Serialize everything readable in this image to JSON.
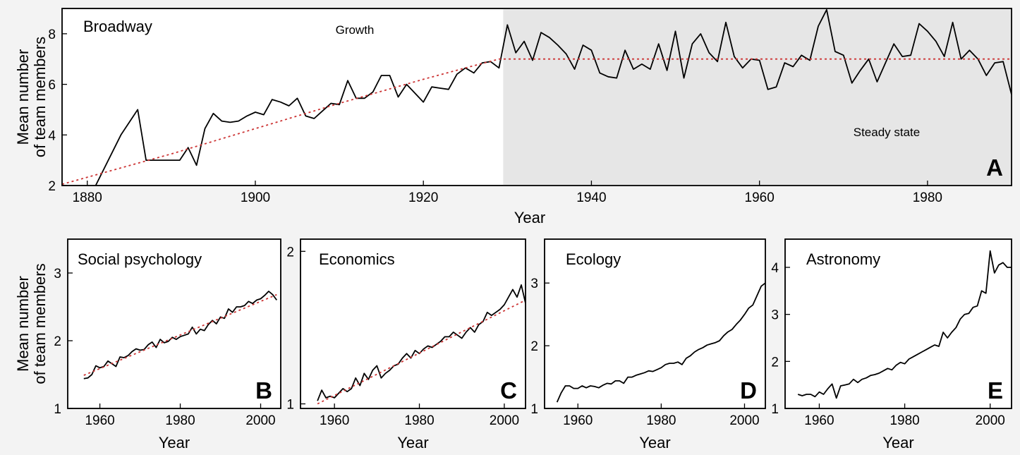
{
  "colors": {
    "background": "#f3f3f3",
    "plot_background": "#ffffff",
    "steady_state_shade": "#e6e6e6",
    "data_line": "#000000",
    "fit_line": "#cc3333"
  },
  "chart_data": [
    {
      "panel": "A",
      "type": "line",
      "title": "Broadway",
      "xlabel": "Year",
      "ylabel": [
        "Mean number",
        "of team members"
      ],
      "xlim": [
        1877,
        1990
      ],
      "ylim": [
        2,
        9
      ],
      "xticks": [
        1880,
        1900,
        1920,
        1940,
        1960,
        1980
      ],
      "yticks": [
        2,
        4,
        6,
        8
      ],
      "annotations": [
        "Growth",
        "Steady state"
      ],
      "shaded_region": [
        1929.5,
        1990
      ],
      "series": [
        {
          "style": "solid",
          "x": [
            1881,
            1884,
            1886,
            1887,
            1888,
            1889,
            1890,
            1891,
            1892,
            1893,
            1894,
            1895,
            1896,
            1897,
            1898,
            1899,
            1900,
            1901,
            1902,
            1903,
            1904,
            1905,
            1906,
            1907,
            1908,
            1909,
            1910,
            1911,
            1912,
            1913,
            1914,
            1915,
            1916,
            1917,
            1918,
            1919,
            1920,
            1921,
            1922,
            1923,
            1924,
            1925,
            1926,
            1927,
            1928,
            1929,
            1930,
            1931,
            1932,
            1933,
            1934,
            1935,
            1936,
            1937,
            1938,
            1939,
            1940,
            1941,
            1942,
            1943,
            1944,
            1945,
            1946,
            1947,
            1948,
            1949,
            1950,
            1951,
            1952,
            1953,
            1954,
            1955,
            1956,
            1957,
            1958,
            1959,
            1960,
            1961,
            1962,
            1963,
            1964,
            1965,
            1966,
            1967,
            1968,
            1969,
            1970,
            1971,
            1972,
            1973,
            1974,
            1975,
            1976,
            1977,
            1978,
            1979,
            1980,
            1981,
            1982,
            1983,
            1984,
            1985,
            1986,
            1987,
            1988,
            1989,
            1990
          ],
          "y": [
            2.0,
            4.0,
            5.0,
            3.0,
            3.0,
            3.0,
            3.0,
            3.0,
            3.5,
            2.8,
            4.25,
            4.85,
            4.55,
            4.5,
            4.55,
            4.75,
            4.9,
            4.8,
            5.4,
            5.3,
            5.15,
            5.45,
            4.75,
            4.65,
            4.95,
            5.25,
            5.2,
            6.15,
            5.45,
            5.45,
            5.7,
            6.35,
            6.35,
            5.5,
            6.0,
            5.65,
            5.3,
            5.9,
            5.85,
            5.8,
            6.4,
            6.65,
            6.45,
            6.85,
            6.9,
            6.65,
            8.35,
            7.25,
            7.7,
            6.95,
            8.05,
            7.85,
            7.55,
            7.2,
            6.6,
            7.55,
            7.35,
            6.45,
            6.3,
            6.25,
            7.35,
            6.6,
            6.8,
            6.6,
            7.6,
            6.55,
            8.1,
            6.25,
            7.6,
            8.0,
            7.25,
            6.9,
            8.45,
            7.1,
            6.65,
            7.0,
            6.95,
            5.8,
            5.9,
            6.85,
            6.7,
            7.15,
            6.95,
            8.3,
            8.95,
            7.3,
            7.15,
            6.05,
            6.55,
            7.0,
            6.1,
            6.85,
            7.6,
            7.1,
            7.15,
            8.4,
            8.1,
            7.7,
            7.1,
            8.45,
            7.0,
            7.35,
            7.0,
            6.35,
            6.85,
            6.9,
            5.6
          ]
        },
        {
          "style": "dotted-fit",
          "x": [
            1877,
            1890,
            1900,
            1910,
            1920,
            1925,
            1929,
            1930,
            1990
          ],
          "y": [
            2.05,
            3.25,
            4.25,
            5.25,
            6.2,
            6.65,
            7.0,
            7.0,
            7.0
          ]
        }
      ],
      "panel_letter": "A"
    },
    {
      "panel": "B",
      "type": "line",
      "title": "Social psychology",
      "xlabel": "Year",
      "ylabel": [
        "Mean number",
        "of team members"
      ],
      "xlim": [
        1952,
        2005
      ],
      "ylim": [
        1,
        3.5
      ],
      "xticks": [
        1960,
        1980,
        2000
      ],
      "yticks": [
        1,
        2,
        3
      ],
      "series": [
        {
          "style": "solid",
          "x": [
            1956,
            1957,
            1958,
            1959,
            1960,
            1961,
            1962,
            1963,
            1964,
            1965,
            1966,
            1967,
            1968,
            1969,
            1970,
            1971,
            1972,
            1973,
            1974,
            1975,
            1976,
            1977,
            1978,
            1979,
            1980,
            1981,
            1982,
            1983,
            1984,
            1985,
            1986,
            1987,
            1988,
            1989,
            1990,
            1991,
            1992,
            1993,
            1994,
            1995,
            1996,
            1997,
            1998,
            1999,
            2000,
            2001,
            2002,
            2003,
            2004
          ],
          "y": [
            1.44,
            1.45,
            1.5,
            1.63,
            1.6,
            1.62,
            1.7,
            1.66,
            1.62,
            1.76,
            1.75,
            1.78,
            1.84,
            1.88,
            1.86,
            1.87,
            1.94,
            1.98,
            1.9,
            2.02,
            1.97,
            1.99,
            2.05,
            2.02,
            2.06,
            2.08,
            2.1,
            2.2,
            2.1,
            2.17,
            2.15,
            2.24,
            2.3,
            2.25,
            2.35,
            2.33,
            2.47,
            2.42,
            2.5,
            2.5,
            2.52,
            2.58,
            2.55,
            2.6,
            2.62,
            2.67,
            2.73,
            2.68,
            2.6
          ]
        },
        {
          "style": "dotted-fit",
          "x": [
            1956,
            2004
          ],
          "y": [
            1.49,
            2.68
          ]
        }
      ],
      "panel_letter": "B"
    },
    {
      "panel": "C",
      "type": "line",
      "title": "Economics",
      "xlabel": "Year",
      "ylabel": [],
      "xlim": [
        1952,
        2005
      ],
      "ylim": [
        0.97,
        2.08
      ],
      "xticks": [
        1960,
        1980,
        2000
      ],
      "yticks": [
        1,
        2
      ],
      "series": [
        {
          "style": "solid",
          "x": [
            1956,
            1957,
            1958,
            1959,
            1960,
            1961,
            1962,
            1963,
            1964,
            1965,
            1966,
            1967,
            1968,
            1969,
            1970,
            1971,
            1972,
            1973,
            1974,
            1975,
            1976,
            1977,
            1978,
            1979,
            1980,
            1981,
            1982,
            1983,
            1984,
            1985,
            1986,
            1987,
            1988,
            1989,
            1990,
            1991,
            1992,
            1993,
            1994,
            1995,
            1996,
            1997,
            1998,
            1999,
            2000,
            2001,
            2002,
            2003,
            2004,
            2005
          ],
          "y": [
            1.02,
            1.09,
            1.04,
            1.05,
            1.04,
            1.07,
            1.1,
            1.08,
            1.1,
            1.17,
            1.12,
            1.2,
            1.16,
            1.22,
            1.25,
            1.17,
            1.2,
            1.22,
            1.25,
            1.26,
            1.3,
            1.33,
            1.3,
            1.35,
            1.33,
            1.36,
            1.38,
            1.37,
            1.39,
            1.41,
            1.44,
            1.44,
            1.47,
            1.45,
            1.43,
            1.47,
            1.5,
            1.47,
            1.52,
            1.54,
            1.6,
            1.58,
            1.6,
            1.62,
            1.65,
            1.7,
            1.75,
            1.7,
            1.78,
            1.66
          ]
        },
        {
          "style": "dotted-fit",
          "x": [
            1956,
            2005
          ],
          "y": [
            1.0,
            1.68
          ]
        }
      ],
      "panel_letter": "C"
    },
    {
      "panel": "D",
      "type": "line",
      "title": "Ecology",
      "xlabel": "Year",
      "ylabel": [],
      "xlim": [
        1952,
        2005
      ],
      "ylim": [
        1,
        3.7
      ],
      "xticks": [
        1960,
        1980,
        2000
      ],
      "yticks": [
        1,
        2,
        3
      ],
      "series": [
        {
          "style": "solid",
          "x": [
            1955,
            1956,
            1957,
            1958,
            1959,
            1960,
            1961,
            1962,
            1963,
            1964,
            1965,
            1966,
            1967,
            1968,
            1969,
            1970,
            1971,
            1972,
            1973,
            1974,
            1975,
            1976,
            1977,
            1978,
            1979,
            1980,
            1981,
            1982,
            1983,
            1984,
            1985,
            1986,
            1987,
            1988,
            1989,
            1990,
            1991,
            1992,
            1993,
            1994,
            1995,
            1996,
            1997,
            1998,
            1999,
            2000,
            2001,
            2002,
            2003,
            2004,
            2005
          ],
          "y": [
            1.1,
            1.25,
            1.36,
            1.36,
            1.32,
            1.32,
            1.36,
            1.33,
            1.36,
            1.35,
            1.33,
            1.37,
            1.4,
            1.39,
            1.44,
            1.44,
            1.4,
            1.5,
            1.5,
            1.53,
            1.55,
            1.57,
            1.6,
            1.59,
            1.62,
            1.65,
            1.7,
            1.72,
            1.72,
            1.74,
            1.7,
            1.8,
            1.84,
            1.9,
            1.94,
            1.97,
            2.01,
            2.03,
            2.05,
            2.08,
            2.16,
            2.22,
            2.26,
            2.34,
            2.41,
            2.5,
            2.6,
            2.65,
            2.8,
            2.95,
            3.0
          ]
        }
      ],
      "panel_letter": "D"
    },
    {
      "panel": "E",
      "type": "line",
      "title": "Astronomy",
      "xlabel": "Year",
      "ylabel": [],
      "xlim": [
        1952,
        2005
      ],
      "ylim": [
        1,
        4.6
      ],
      "xticks": [
        1960,
        1980,
        2000
      ],
      "yticks": [
        1,
        2,
        3,
        4
      ],
      "series": [
        {
          "style": "solid",
          "x": [
            1955,
            1956,
            1957,
            1958,
            1959,
            1960,
            1961,
            1962,
            1963,
            1964,
            1965,
            1966,
            1967,
            1968,
            1969,
            1970,
            1971,
            1972,
            1973,
            1974,
            1975,
            1976,
            1977,
            1978,
            1979,
            1980,
            1981,
            1982,
            1983,
            1984,
            1985,
            1986,
            1987,
            1988,
            1989,
            1990,
            1991,
            1992,
            1993,
            1994,
            1995,
            1996,
            1997,
            1998,
            1999,
            2000,
            2001,
            2002,
            2003,
            2004,
            2005
          ],
          "y": [
            1.3,
            1.27,
            1.3,
            1.3,
            1.25,
            1.35,
            1.3,
            1.42,
            1.52,
            1.22,
            1.48,
            1.5,
            1.52,
            1.62,
            1.55,
            1.62,
            1.65,
            1.7,
            1.72,
            1.75,
            1.8,
            1.85,
            1.82,
            1.92,
            1.98,
            1.95,
            2.05,
            2.1,
            2.15,
            2.2,
            2.25,
            2.3,
            2.35,
            2.32,
            2.62,
            2.5,
            2.62,
            2.72,
            2.9,
            3.0,
            3.02,
            3.15,
            3.18,
            3.5,
            3.45,
            4.35,
            3.88,
            4.05,
            4.1,
            4.0,
            4.0
          ]
        }
      ],
      "panel_letter": "E"
    }
  ]
}
